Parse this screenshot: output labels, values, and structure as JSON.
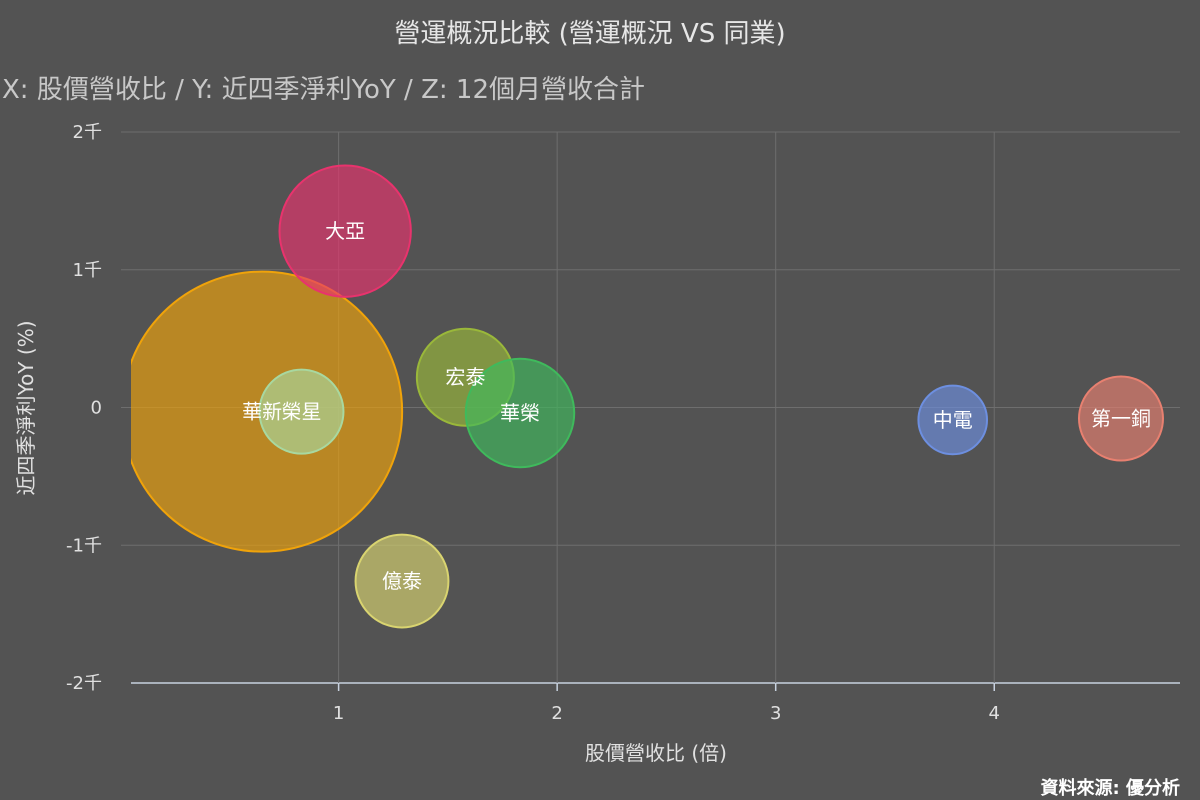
{
  "chart_data": {
    "type": "bubble",
    "title": "營運概況比較 (營運概況 VS 同業)",
    "subtitle": "X: 股價營收比 / Y: 近四季淨利YoY / Z: 12個月營收合計",
    "xlabel": "股價營收比 (倍)",
    "ylabel": "近四季淨利YoY (%)",
    "xlim": [
      0.05,
      4.85
    ],
    "ylim": [
      -2000,
      2000
    ],
    "x_ticks": [
      {
        "value": 1,
        "label": "1"
      },
      {
        "value": 2,
        "label": "2"
      },
      {
        "value": 3,
        "label": "3"
      },
      {
        "value": 4,
        "label": "4"
      }
    ],
    "y_ticks": [
      {
        "value": 2000,
        "label": "2千"
      },
      {
        "value": 1000,
        "label": "1千"
      },
      {
        "value": 0,
        "label": "0"
      },
      {
        "value": -1000,
        "label": "-1千"
      },
      {
        "value": -2000,
        "label": "-2千"
      }
    ],
    "grid": true,
    "series": [
      {
        "name": "華新",
        "x": 0.65,
        "y": -30,
        "z": 100,
        "color": "#f0a30a"
      },
      {
        "name": "大亞",
        "x": 1.03,
        "y": 1280,
        "z": 22,
        "color": "#e8336d"
      },
      {
        "name": "宏泰",
        "x": 1.58,
        "y": 220,
        "z": 12,
        "color": "#9ab83a"
      },
      {
        "name": "華榮",
        "x": 1.83,
        "y": -40,
        "z": 15,
        "color": "#3fba5c"
      },
      {
        "name": "榮星",
        "x": 0.83,
        "y": -30,
        "z": 9,
        "color": "#a8d8a0"
      },
      {
        "name": "億泰",
        "x": 1.29,
        "y": -1260,
        "z": 11,
        "color": "#d9d470"
      },
      {
        "name": "中電",
        "x": 3.81,
        "y": -90,
        "z": 6,
        "color": "#6d8fe0"
      },
      {
        "name": "第一銅",
        "x": 4.58,
        "y": -80,
        "z": 9,
        "color": "#e88070"
      }
    ]
  },
  "credit": "資料來源: 優分析"
}
